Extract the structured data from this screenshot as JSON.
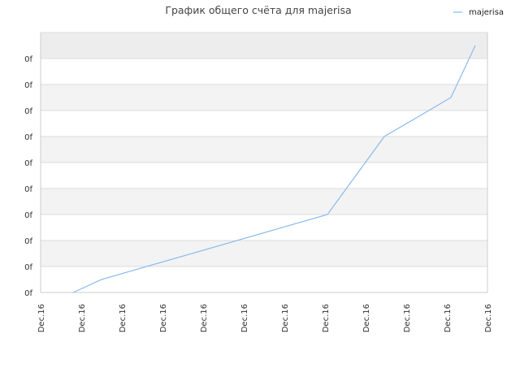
{
  "chart_data": {
    "type": "line",
    "title": "График общего счёта для majerisa",
    "xlabel": "",
    "ylabel": "",
    "legend": {
      "position": "top-right",
      "entries": [
        "majerisa"
      ]
    },
    "grid": true,
    "x_tick_labels": [
      "Dec.16",
      "Dec.16",
      "Dec.16",
      "Dec.16",
      "Dec.16",
      "Dec.16",
      "Dec.16",
      "Dec.16",
      "Dec.16",
      "Dec.16",
      "Dec.16",
      "Dec.16"
    ],
    "y_tick_labels": [
      "0f",
      "0f",
      "0f",
      "0f",
      "0f",
      "0f",
      "0f",
      "0f",
      "0f",
      "0f"
    ],
    "xlim": [
      0,
      11
    ],
    "ylim": [
      0,
      9
    ],
    "series": [
      {
        "name": "majerisa",
        "color": "#88bbee",
        "x": [
          0.8,
          1.5,
          7.06,
          8.46,
          10.1,
          10.7
        ],
        "y": [
          0.0,
          0.5,
          3.0,
          6.0,
          7.5,
          9.5
        ]
      }
    ]
  },
  "colors": {
    "band_dark": "#ededed",
    "band_light": "#f3f3f3",
    "grid": "#dddddd",
    "axis": "#cccccc"
  }
}
